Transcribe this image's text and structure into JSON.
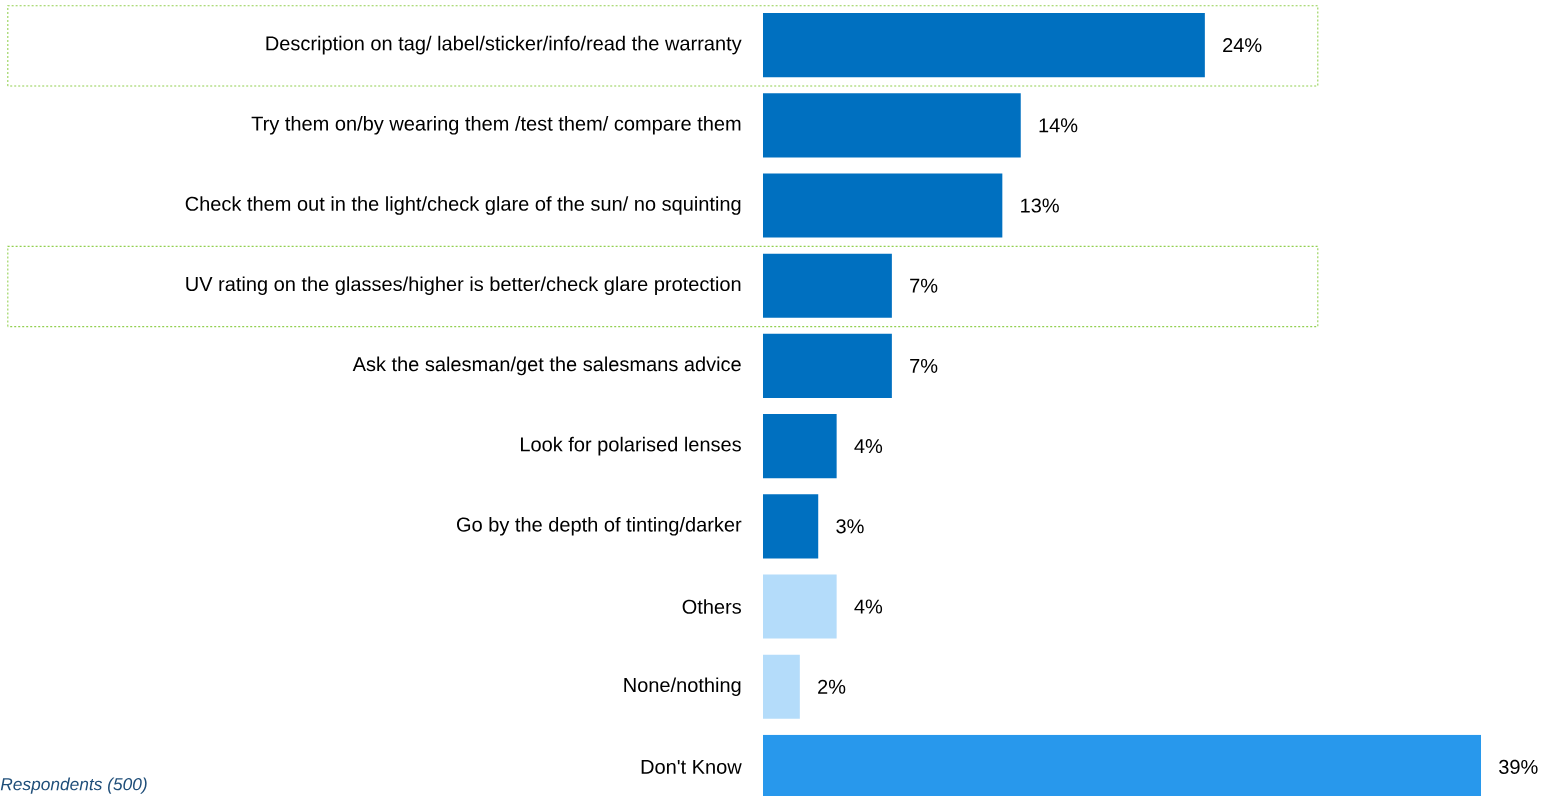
{
  "chart_data": {
    "type": "bar",
    "orientation": "horizontal",
    "categories": [
      "Description on tag/ label/sticker/info/read the warranty",
      "Try them on/by wearing them /test them/ compare them",
      "Check them out in the light/check glare of the sun/ no squinting",
      "UV rating on the glasses/higher is better/check glare protection",
      "Ask the salesman/get the salesmans advice",
      "Look for polarised lenses",
      "Go by the depth of tinting/darker",
      "Others",
      "None/nothing",
      "Don't Know"
    ],
    "values": [
      24,
      14,
      13,
      7,
      7,
      4,
      3,
      4,
      2,
      39
    ],
    "value_labels": [
      "24%",
      "14%",
      "13%",
      "7%",
      "7%",
      "4%",
      "3%",
      "4%",
      "2%",
      "39%"
    ],
    "colors": [
      "#0070c0",
      "#0070c0",
      "#0070c0",
      "#0070c0",
      "#0070c0",
      "#0070c0",
      "#0070c0",
      "#b4dcfa",
      "#b4dcfa",
      "#2898ec"
    ],
    "annotations": [
      "Respondents  (500)"
    ],
    "tick_labels": "y"
  }
}
